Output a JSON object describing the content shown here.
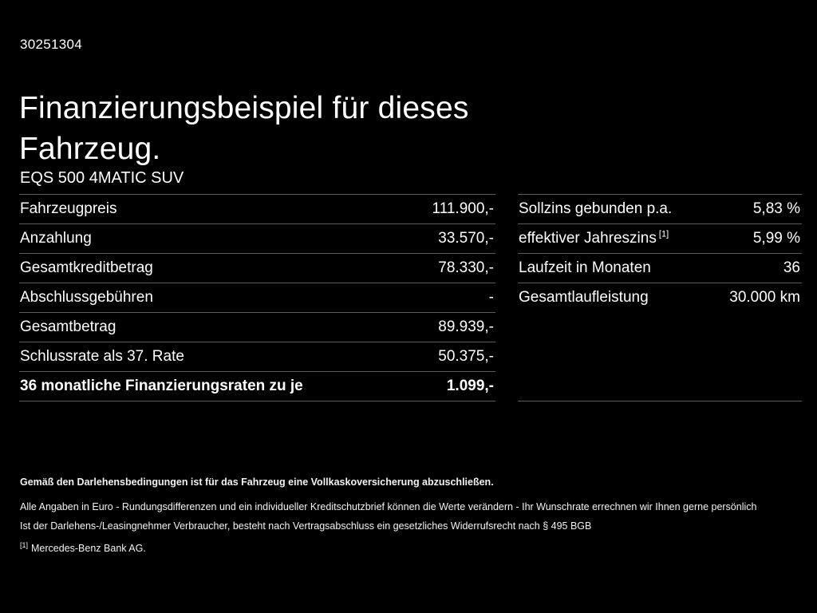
{
  "header": {
    "id_number": "30251304",
    "title_line1": "Finanzierungsbeispiel für dieses",
    "title_line2": "Fahrzeug.",
    "vehicle_model": "EQS 500 4MATIC SUV"
  },
  "left_table": {
    "rows": [
      {
        "label": "Fahrzeugpreis",
        "value": "111.900,-",
        "bold": false
      },
      {
        "label": "Anzahlung",
        "value": "33.570,-",
        "bold": false
      },
      {
        "label": "Gesamtkreditbetrag",
        "value": "78.330,-",
        "bold": false
      },
      {
        "label": "Abschlussgebühren",
        "value": "-",
        "bold": false
      },
      {
        "label": "Gesamtbetrag",
        "value": "89.939,-",
        "bold": false
      },
      {
        "label": "Schlussrate als 37. Rate",
        "value": "50.375,-",
        "bold": false
      },
      {
        "label": "36 monatliche Finanzierungsraten zu je",
        "value": "1.099,-",
        "bold": true
      }
    ]
  },
  "right_table": {
    "rows": [
      {
        "label": "Sollzins gebunden p.a.",
        "value": "5,83 %",
        "bold": false
      },
      {
        "label": "effektiver Jahreszins",
        "label_sup": "[1]",
        "value": "5,99 %",
        "bold": false
      },
      {
        "label": "Laufzeit in Monaten",
        "value": "36",
        "bold": false
      },
      {
        "label": "Gesamtlaufleistung",
        "value": "30.000 km",
        "bold": false
      }
    ]
  },
  "footer": {
    "line1": "Gemäß den Darlehensbedingungen ist für das Fahrzeug eine Vollkaskoversicherung abzuschließen.",
    "line2": "Alle Angaben in Euro - Rundungsdifferenzen und ein individueller Kreditschutzbrief können die Werte verändern - Ihr Wunschrate errechnen wir Ihnen gerne persönlich",
    "line3": "Ist der Darlehens-/Leasingnehmer Verbraucher, besteht nach Vertragsabschluss ein gesetzliches Widerrufsrecht nach § 495 BGB",
    "footnote_marker": "[1]",
    "footnote_text": "Mercedes-Benz Bank AG."
  },
  "colors": {
    "background": "#000000",
    "text": "#ffffff",
    "divider": "#5c5c5c"
  }
}
